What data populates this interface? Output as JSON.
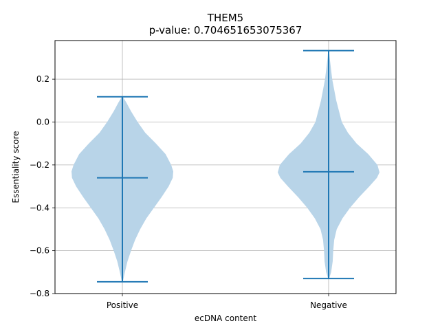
{
  "chart_data": {
    "type": "violin",
    "title": "THEM5",
    "subtitle": "p-value: 0.704651653075367",
    "xlabel": "ecDNA content",
    "ylabel": "Essentiality score",
    "categories": [
      "Positive",
      "Negative"
    ],
    "ylim": [
      -0.8,
      0.38
    ],
    "yticks": [
      -0.8,
      -0.6,
      -0.4,
      -0.2,
      0.0,
      0.2
    ],
    "ytick_labels": [
      "−0.8",
      "−0.6",
      "−0.4",
      "−0.2",
      "0.0",
      "0.2"
    ],
    "grid": true,
    "colors": {
      "body": "#b8d4e8",
      "line": "#1f77b4",
      "grid": "#b0b0b0"
    },
    "series": [
      {
        "category": "Positive",
        "min": -0.745,
        "max": 0.118,
        "median": -0.26,
        "density_profile": [
          [
            0.118,
            0.01
          ],
          [
            0.09,
            0.08
          ],
          [
            0.05,
            0.17
          ],
          [
            0.0,
            0.3
          ],
          [
            -0.05,
            0.45
          ],
          [
            -0.1,
            0.66
          ],
          [
            -0.15,
            0.85
          ],
          [
            -0.2,
            0.96
          ],
          [
            -0.23,
            1.0
          ],
          [
            -0.26,
            0.99
          ],
          [
            -0.3,
            0.91
          ],
          [
            -0.35,
            0.77
          ],
          [
            -0.4,
            0.62
          ],
          [
            -0.45,
            0.47
          ],
          [
            -0.5,
            0.35
          ],
          [
            -0.55,
            0.25
          ],
          [
            -0.6,
            0.17
          ],
          [
            -0.65,
            0.1
          ],
          [
            -0.7,
            0.05
          ],
          [
            -0.745,
            0.01
          ]
        ]
      },
      {
        "category": "Negative",
        "min": -0.73,
        "max": 0.333,
        "median": -0.232,
        "density_profile": [
          [
            0.333,
            0.01
          ],
          [
            0.3,
            0.02
          ],
          [
            0.2,
            0.07
          ],
          [
            0.1,
            0.15
          ],
          [
            0.0,
            0.26
          ],
          [
            -0.05,
            0.38
          ],
          [
            -0.1,
            0.55
          ],
          [
            -0.15,
            0.78
          ],
          [
            -0.2,
            0.96
          ],
          [
            -0.235,
            1.0
          ],
          [
            -0.26,
            0.95
          ],
          [
            -0.3,
            0.8
          ],
          [
            -0.35,
            0.6
          ],
          [
            -0.4,
            0.42
          ],
          [
            -0.45,
            0.27
          ],
          [
            -0.5,
            0.16
          ],
          [
            -0.55,
            0.11
          ],
          [
            -0.6,
            0.09
          ],
          [
            -0.65,
            0.08
          ],
          [
            -0.7,
            0.05
          ],
          [
            -0.73,
            0.01
          ]
        ]
      }
    ]
  }
}
